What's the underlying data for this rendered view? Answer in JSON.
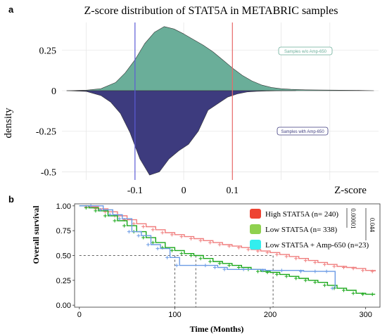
{
  "panels": {
    "a_label": "a",
    "b_label": "b"
  },
  "chart_data": [
    {
      "type": "area",
      "title": "Z-score distribution of STAT5A in METABRIC samples",
      "xlabel": "Z-score",
      "ylabel": "density",
      "xlim": [
        -0.25,
        0.4
      ],
      "ylim": [
        -0.55,
        0.42
      ],
      "x_ticks": [
        "-0.1",
        "0",
        "0.1"
      ],
      "y_ticks": [
        "0.25",
        "0",
        "-0.25",
        "-0.5"
      ],
      "grid": true,
      "vlines": [
        {
          "x": -0.1,
          "color": "#5b5bd6"
        },
        {
          "x": 0.1,
          "color": "#e86a6a"
        }
      ],
      "series": [
        {
          "name": "Samples w/o Amp-650",
          "color": "#6aae99",
          "x": [
            -0.24,
            -0.2,
            -0.17,
            -0.14,
            -0.12,
            -0.1,
            -0.08,
            -0.06,
            -0.04,
            -0.02,
            0.0,
            0.02,
            0.04,
            0.06,
            0.08,
            0.1,
            0.12,
            0.14,
            0.16,
            0.18,
            0.2,
            0.22,
            0.25,
            0.28,
            0.32,
            0.36,
            0.39
          ],
          "values": [
            0.0,
            0.003,
            0.012,
            0.05,
            0.11,
            0.19,
            0.29,
            0.36,
            0.395,
            0.38,
            0.35,
            0.315,
            0.28,
            0.24,
            0.19,
            0.14,
            0.095,
            0.06,
            0.035,
            0.02,
            0.012,
            0.008,
            0.005,
            0.004,
            0.003,
            0.002,
            0.0
          ]
        },
        {
          "name": "Samples with Amp-650",
          "color": "#3d3b7e",
          "x": [
            -0.24,
            -0.2,
            -0.17,
            -0.15,
            -0.13,
            -0.11,
            -0.09,
            -0.07,
            -0.05,
            -0.03,
            -0.01,
            0.01,
            0.03,
            0.05,
            0.07,
            0.09,
            0.11,
            0.13,
            0.15,
            0.17,
            0.19,
            0.21,
            0.23
          ],
          "values": [
            0.0,
            -0.005,
            -0.03,
            -0.07,
            -0.14,
            -0.26,
            -0.42,
            -0.52,
            -0.5,
            -0.42,
            -0.37,
            -0.33,
            -0.25,
            -0.12,
            -0.08,
            -0.04,
            -0.02,
            -0.008,
            -0.004,
            -0.002,
            -0.001,
            -0.0005,
            0.0
          ]
        }
      ]
    },
    {
      "type": "line",
      "xlabel": "Time (Months)",
      "ylabel": "Overall survival",
      "xlim": [
        -5,
        315
      ],
      "ylim": [
        -0.02,
        1.02
      ],
      "x_ticks": [
        "0",
        "100",
        "200",
        "300"
      ],
      "y_ticks": [
        "1.00",
        "0.75",
        "0.50",
        "0.25",
        "0.00"
      ],
      "median_markers": [
        100,
        122,
        203
      ],
      "legend": {
        "placement": "top-right",
        "entries": [
          {
            "label": "High STAT5A (n= 240)",
            "color": "#ee4433"
          },
          {
            "label": "Low STAT5A (n= 338)",
            "color": "#8fd14f"
          },
          {
            "label": "Low STAT5A + Amp-650 (n=23)",
            "color": "#33eeee"
          }
        ]
      },
      "pvalues": [
        "0.00001",
        "0.044"
      ],
      "series": [
        {
          "name": "High STAT5A (n= 240)",
          "color": "#f07e7e",
          "x": [
            0,
            10,
            20,
            30,
            40,
            50,
            60,
            70,
            80,
            90,
            100,
            110,
            120,
            130,
            140,
            150,
            160,
            170,
            180,
            190,
            200,
            210,
            220,
            230,
            240,
            250,
            260,
            270,
            280,
            290,
            300,
            310
          ],
          "values": [
            1.0,
            0.99,
            0.97,
            0.94,
            0.9,
            0.86,
            0.82,
            0.79,
            0.76,
            0.73,
            0.71,
            0.69,
            0.67,
            0.65,
            0.63,
            0.61,
            0.595,
            0.58,
            0.56,
            0.545,
            0.53,
            0.51,
            0.49,
            0.47,
            0.45,
            0.43,
            0.41,
            0.39,
            0.38,
            0.37,
            0.35,
            0.34
          ]
        },
        {
          "name": "Low STAT5A (n= 338)",
          "color": "#1aa81a",
          "x": [
            0,
            10,
            20,
            30,
            40,
            50,
            60,
            70,
            80,
            90,
            100,
            110,
            120,
            130,
            140,
            150,
            160,
            170,
            180,
            190,
            200,
            210,
            220,
            230,
            240,
            250,
            260,
            270,
            280,
            290,
            300,
            310
          ],
          "values": [
            1.0,
            0.98,
            0.95,
            0.9,
            0.85,
            0.8,
            0.74,
            0.68,
            0.63,
            0.58,
            0.55,
            0.52,
            0.5,
            0.47,
            0.44,
            0.42,
            0.4,
            0.38,
            0.36,
            0.34,
            0.33,
            0.31,
            0.29,
            0.27,
            0.25,
            0.23,
            0.2,
            0.17,
            0.15,
            0.12,
            0.11,
            0.11
          ]
        },
        {
          "name": "Low STAT5A + Amp-650 (n=23)",
          "color": "#6b9be5",
          "x": [
            0,
            15,
            25,
            35,
            45,
            55,
            65,
            75,
            85,
            95,
            105,
            135,
            145,
            155,
            175,
            195,
            215,
            235,
            250,
            262,
            268
          ],
          "values": [
            1.0,
            1.0,
            0.96,
            0.91,
            0.87,
            0.74,
            0.7,
            0.61,
            0.57,
            0.48,
            0.4,
            0.4,
            0.38,
            0.36,
            0.36,
            0.35,
            0.35,
            0.34,
            0.34,
            0.34,
            0.17
          ]
        }
      ]
    }
  ]
}
